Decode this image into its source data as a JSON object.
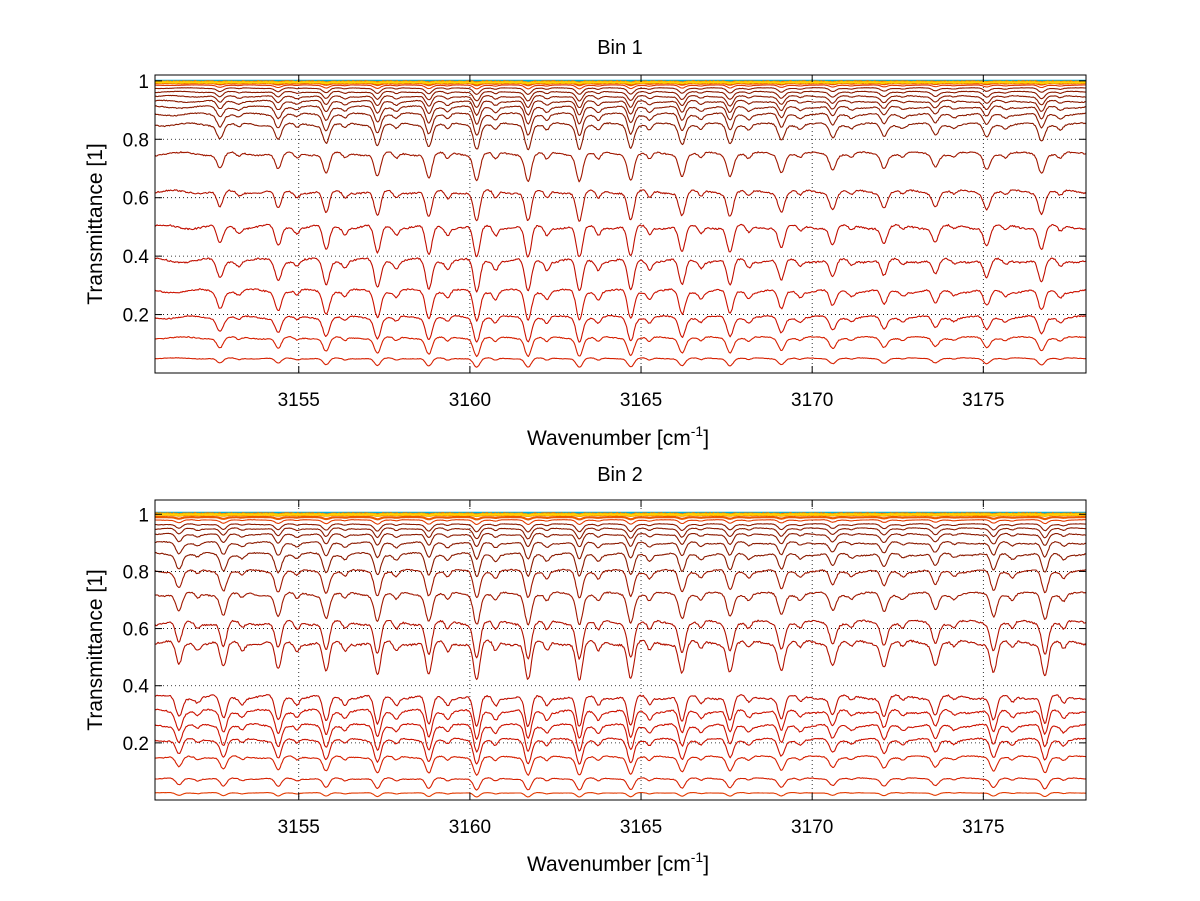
{
  "figure": {
    "background": "#ffffff"
  },
  "chart_data": [
    {
      "type": "line",
      "title": "Bin 1",
      "xlabel": "Wavenumber [cm",
      "xlabel_sup": "-1",
      "xlabel_suffix": "]",
      "ylabel": "Transmittance [1]",
      "xlim": [
        3150.8,
        3178.0
      ],
      "ylim": [
        0.0,
        1.02
      ],
      "xticks": [
        3155,
        3160,
        3165,
        3170,
        3175
      ],
      "xtick_labels": [
        "3155",
        "3160",
        "3165",
        "3170",
        "3175"
      ],
      "yticks": [
        0.2,
        0.4,
        0.6,
        0.8,
        1.0
      ],
      "ytick_labels": [
        "0.2",
        "0.4",
        "0.6",
        "0.8",
        "1"
      ],
      "grid": "dotted",
      "line_colors": [
        "#8b1a00",
        "#a01800",
        "#b21200",
        "#c00f00",
        "#cc1200",
        "#d62000",
        "#e23a00",
        "#ec5a00",
        "#f47800",
        "#f89a00",
        "#fbbc00",
        "#ffd400",
        "#00b0d8"
      ],
      "absorption_lines_x": [
        3152.7,
        3154.4,
        3155.8,
        3157.3,
        3158.8,
        3160.2,
        3161.7,
        3163.2,
        3164.7,
        3166.2,
        3167.6,
        3169.1,
        3170.6,
        3172.1,
        3173.6,
        3175.1,
        3176.7
      ],
      "absorption_lines_depth": [
        0.55,
        0.6,
        0.75,
        0.85,
        0.9,
        1.0,
        1.0,
        1.0,
        0.95,
        0.8,
        0.8,
        0.65,
        0.55,
        0.5,
        0.45,
        0.55,
        0.7
      ],
      "series": [
        {
          "level": 1.0,
          "depth": 0.0
        },
        {
          "level": 0.996,
          "depth": 0.004
        },
        {
          "level": 0.992,
          "depth": 0.007
        },
        {
          "level": 0.985,
          "depth": 0.012
        },
        {
          "level": 0.975,
          "depth": 0.02
        },
        {
          "level": 0.962,
          "depth": 0.03
        },
        {
          "level": 0.947,
          "depth": 0.04
        },
        {
          "level": 0.93,
          "depth": 0.05
        },
        {
          "level": 0.91,
          "depth": 0.06
        },
        {
          "level": 0.885,
          "depth": 0.07
        },
        {
          "level": 0.85,
          "depth": 0.08
        },
        {
          "level": 0.75,
          "depth": 0.09
        },
        {
          "level": 0.62,
          "depth": 0.1
        },
        {
          "level": 0.5,
          "depth": 0.11
        },
        {
          "level": 0.385,
          "depth": 0.11
        },
        {
          "level": 0.28,
          "depth": 0.1
        },
        {
          "level": 0.19,
          "depth": 0.08
        },
        {
          "level": 0.12,
          "depth": 0.06
        },
        {
          "level": 0.05,
          "depth": 0.03
        }
      ]
    },
    {
      "type": "line",
      "title": "Bin 2",
      "xlabel": "Wavenumber [cm",
      "xlabel_sup": "-1",
      "xlabel_suffix": "]",
      "ylabel": "Transmittance [1]",
      "xlim": [
        3150.8,
        3178.0
      ],
      "ylim": [
        0.0,
        1.05
      ],
      "xticks": [
        3155,
        3160,
        3165,
        3170,
        3175
      ],
      "xtick_labels": [
        "3155",
        "3160",
        "3165",
        "3170",
        "3175"
      ],
      "yticks": [
        0.2,
        0.4,
        0.6,
        0.8,
        1.0
      ],
      "ytick_labels": [
        "0.2",
        "0.4",
        "0.6",
        "0.8",
        "1"
      ],
      "grid": "dotted",
      "line_colors": [
        "#8b1a00",
        "#a01800",
        "#b21200",
        "#c00f00",
        "#cc1200",
        "#d62000",
        "#e23a00",
        "#ec5a00",
        "#f47800",
        "#f89a00",
        "#fbbc00",
        "#ffd400",
        "#00b0d8"
      ],
      "absorption_lines_x": [
        3151.5,
        3152.8,
        3154.4,
        3155.8,
        3157.3,
        3158.8,
        3160.2,
        3161.7,
        3163.2,
        3164.7,
        3166.2,
        3167.6,
        3169.1,
        3170.6,
        3172.1,
        3173.6,
        3175.3,
        3176.8
      ],
      "absorption_lines_depth": [
        0.6,
        0.7,
        0.75,
        0.8,
        0.9,
        0.9,
        1.0,
        1.0,
        1.0,
        0.95,
        0.8,
        0.75,
        0.7,
        0.55,
        0.6,
        0.55,
        0.75,
        0.85
      ],
      "series": [
        {
          "level": 1.005,
          "depth": 0.0
        },
        {
          "level": 0.998,
          "depth": 0.004
        },
        {
          "level": 0.99,
          "depth": 0.008
        },
        {
          "level": 0.98,
          "depth": 0.015
        },
        {
          "level": 0.965,
          "depth": 0.025
        },
        {
          "level": 0.95,
          "depth": 0.035
        },
        {
          "level": 0.93,
          "depth": 0.045
        },
        {
          "level": 0.9,
          "depth": 0.06
        },
        {
          "level": 0.86,
          "depth": 0.08
        },
        {
          "level": 0.8,
          "depth": 0.09
        },
        {
          "level": 0.72,
          "depth": 0.1
        },
        {
          "level": 0.62,
          "depth": 0.12
        },
        {
          "level": 0.55,
          "depth": 0.13
        },
        {
          "level": 0.36,
          "depth": 0.11
        },
        {
          "level": 0.31,
          "depth": 0.1
        },
        {
          "level": 0.26,
          "depth": 0.09
        },
        {
          "level": 0.21,
          "depth": 0.08
        },
        {
          "level": 0.15,
          "depth": 0.06
        },
        {
          "level": 0.075,
          "depth": 0.04
        },
        {
          "level": 0.025,
          "depth": 0.015
        }
      ]
    }
  ]
}
